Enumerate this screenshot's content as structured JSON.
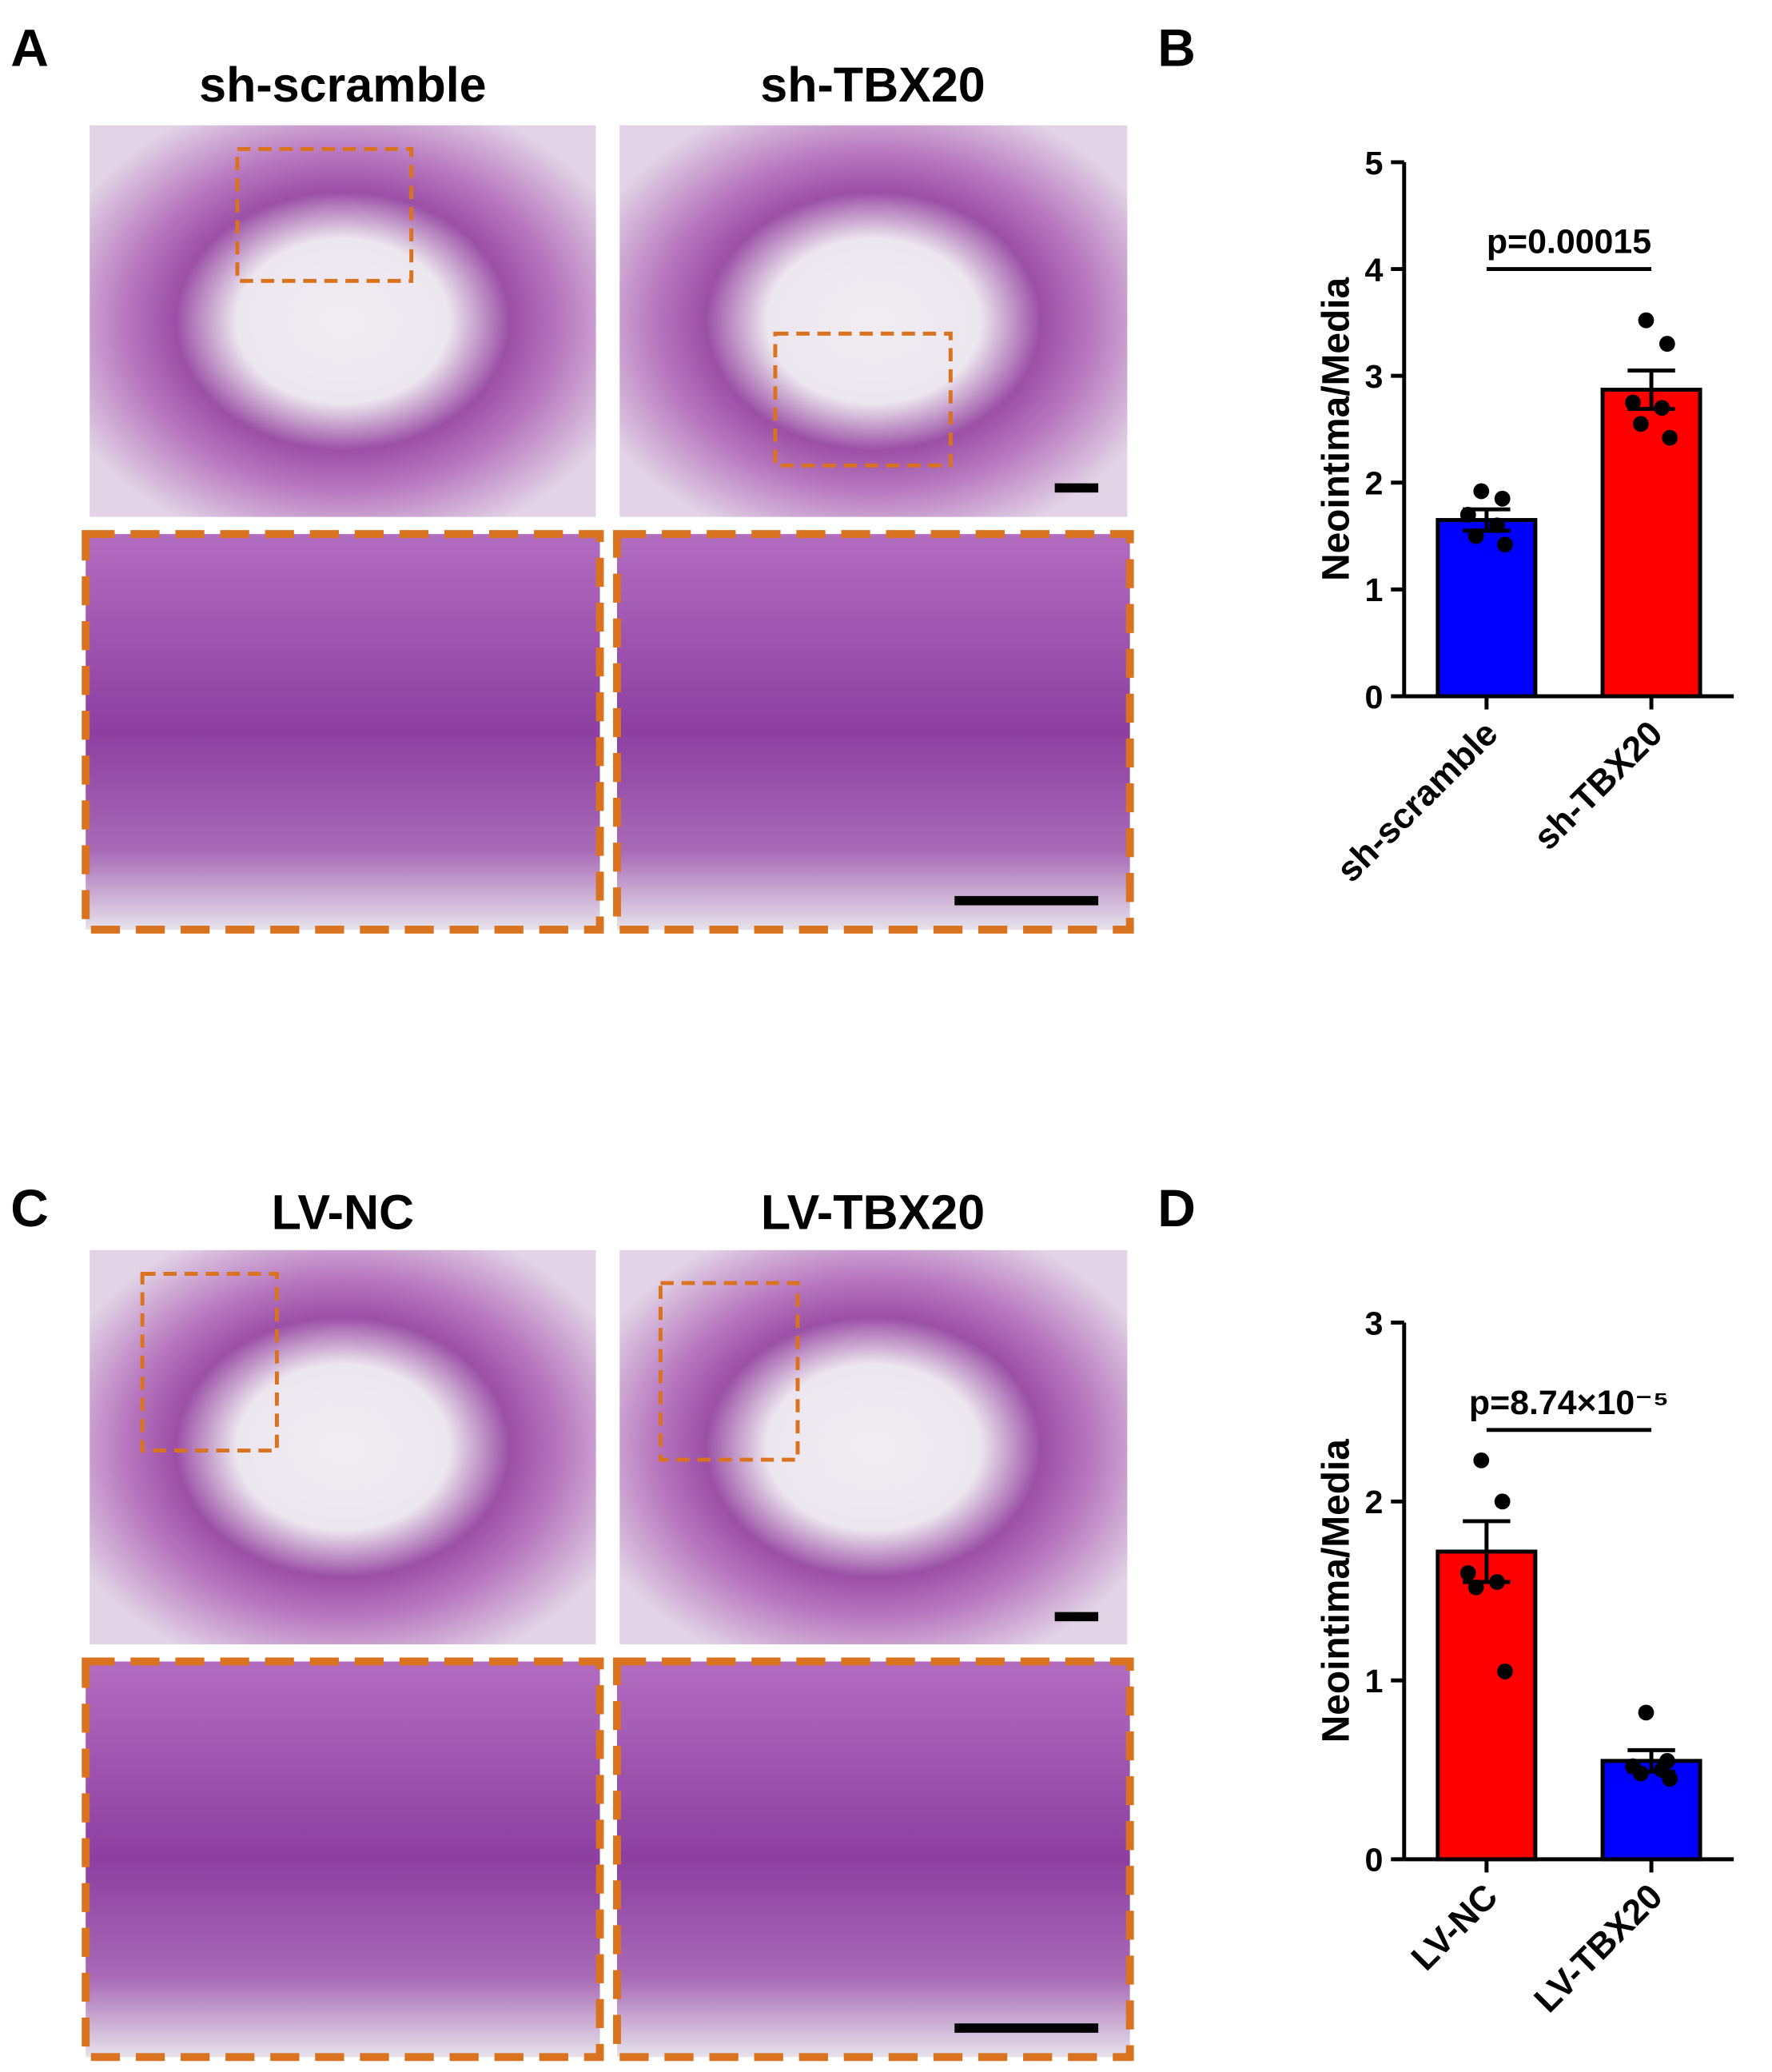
{
  "panel_labels": [
    "A",
    "B",
    "C",
    "D"
  ],
  "image_titles": [
    "sh-scramble",
    "sh-TBX20",
    "LV-NC",
    "LV-TBX20"
  ],
  "chart_data": [
    {
      "type": "bar",
      "ylabel": "Neointima/Media",
      "categories": [
        "sh-scramble",
        "sh-TBX20"
      ],
      "values": [
        1.65,
        2.87
      ],
      "errors": [
        0.1,
        0.18
      ],
      "points": [
        [
          1.92,
          1.85,
          1.7,
          1.6,
          1.5,
          1.42
        ],
        [
          3.52,
          3.3,
          2.75,
          2.7,
          2.55,
          2.42
        ]
      ],
      "colors": [
        "#0000ff",
        "#ff0000"
      ],
      "ylim": [
        0,
        5
      ],
      "yticks": [
        0,
        1,
        2,
        3,
        4,
        5
      ],
      "annotation": "p=0.00015"
    },
    {
      "type": "bar",
      "ylabel": "Neointima/Media",
      "categories": [
        "LV-NC",
        "LV-TBX20"
      ],
      "values": [
        1.72,
        0.55
      ],
      "errors": [
        0.17,
        0.06
      ],
      "points": [
        [
          2.23,
          2.0,
          1.6,
          1.55,
          1.52,
          1.05
        ],
        [
          0.82,
          0.55,
          0.52,
          0.5,
          0.48,
          0.45
        ]
      ],
      "colors": [
        "#ff0000",
        "#0000ff"
      ],
      "ylim": [
        0,
        3
      ],
      "yticks": [
        0,
        1,
        2,
        3
      ],
      "annotation": "p=8.74×10⁻⁵"
    }
  ]
}
